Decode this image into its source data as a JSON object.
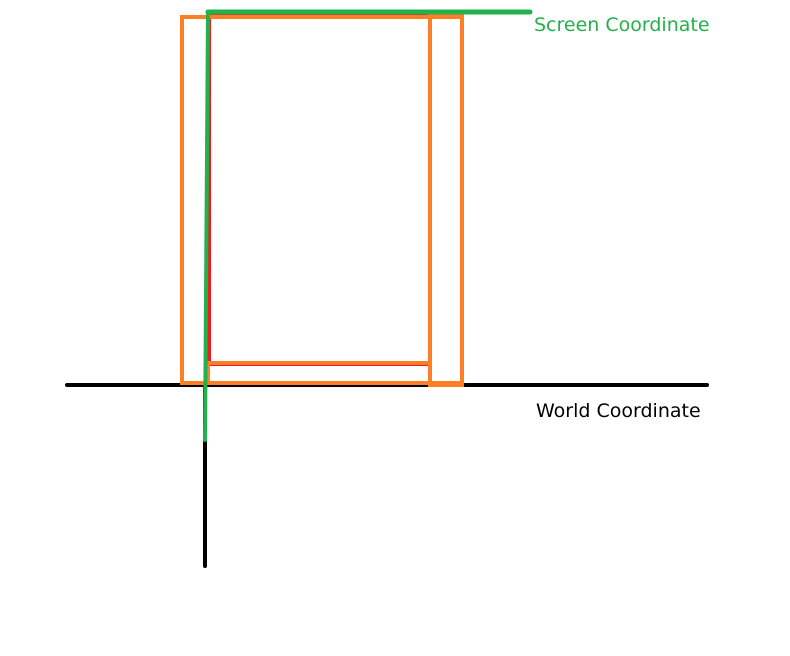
{
  "labels": {
    "screen": "Screen Coordinate",
    "world": "World Coordinate"
  },
  "colors": {
    "screen_axis": "#22b14c",
    "world_axis": "#000000",
    "frame": "#ff7f27",
    "viewport": "#ed1c24",
    "background": "#ffffff"
  }
}
